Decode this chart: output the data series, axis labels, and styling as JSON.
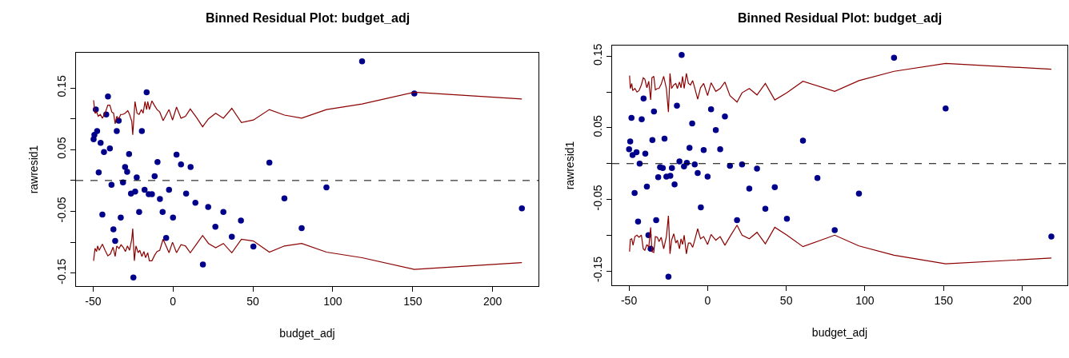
{
  "chart_data": [
    {
      "type": "scatter",
      "title": "Binned Residual Plot: budget_adj",
      "xlabel": "budget_adj",
      "ylabel": "rawresid1",
      "xlim": [
        -60.7,
        228.7
      ],
      "ylim": [
        -0.171,
        0.207
      ],
      "xticks": [
        -50,
        0,
        50,
        100,
        150,
        200
      ],
      "yticks": [
        -0.15,
        {
          "value": -0.1,
          "label": null
        },
        -0.05,
        {
          "value": 0,
          "label": null
        },
        0.05,
        {
          "value": 0.1,
          "label": null
        },
        0.15
      ],
      "ref_lines": [
        {
          "axis": "y",
          "value": 0,
          "color": "#000000",
          "line_style": "dashed"
        }
      ],
      "series": [
        {
          "color": "#00008b",
          "marker": "circle",
          "x": [
            -48.3,
            -49.2,
            -47.5,
            -49.7,
            -45.3,
            -40.7,
            -41.8,
            -34.0,
            -35.2,
            -39.5,
            -43.2,
            -46.5,
            -16.5,
            -19.5,
            -27.5,
            -30.0,
            -28.7,
            -38.5,
            -31.3,
            -22.7,
            -26.3,
            -23.7,
            -17.8,
            -15.2,
            -13.2,
            -11.5,
            -9.7,
            -8.2,
            -2.5,
            2.2,
            5.0,
            11.0,
            8.2,
            14.0,
            -21.2,
            -6.5,
            0.0,
            -44.2,
            -32.7,
            -37.3,
            -36.2,
            -4.3,
            22.0,
            31.5,
            26.5,
            42.5,
            36.8,
            50.3,
            18.7,
            -24.8,
            60.3,
            69.7,
            96.0,
            80.5,
            118.3,
            151.0,
            218.3
          ],
          "values": [
            0.115,
            0.074,
            0.08,
            0.067,
            0.061,
            0.136,
            0.107,
            0.097,
            0.08,
            0.052,
            0.046,
            0.013,
            0.143,
            0.08,
            0.043,
            0.022,
            0.014,
            -0.007,
            -0.003,
            0.005,
            -0.021,
            -0.018,
            -0.015,
            -0.022,
            -0.022,
            0.007,
            0.03,
            -0.03,
            -0.015,
            0.042,
            0.026,
            0.022,
            -0.021,
            -0.036,
            -0.051,
            -0.051,
            -0.06,
            -0.055,
            -0.06,
            -0.079,
            -0.098,
            -0.093,
            -0.043,
            -0.051,
            -0.075,
            -0.065,
            -0.091,
            -0.107,
            -0.136,
            -0.157,
            0.029,
            -0.029,
            -0.011,
            -0.077,
            0.193,
            0.141,
            -0.045
          ]
        },
        {
          "type": "line",
          "color": "#8b0000",
          "marker": "none",
          "line_style": "solid",
          "x": [
            -49.7,
            -48.8,
            -47.8,
            -46.8,
            -45.5,
            -44.2,
            -42.5,
            -40.8,
            -39.5,
            -38.3,
            -37.2,
            -36.2,
            -35.2,
            -33.8,
            -32.8,
            -31.5,
            -30.0,
            -28.3,
            -27.2,
            -25.8,
            -25.2,
            -23.8,
            -22.5,
            -21.2,
            -19.8,
            -18.7,
            -17.5,
            -16.5,
            -15.8,
            -14.8,
            -13.2,
            -11.7,
            -10.0,
            -8.3,
            -6.2,
            -2.5,
            -0.3,
            2.2,
            5.0,
            7.8,
            10.8,
            15.0,
            18.5,
            22.2,
            26.7,
            31.5,
            36.8,
            42.8,
            50.3,
            60.3,
            69.7,
            80.5,
            96.0,
            118.3,
            151.0,
            218.3
          ],
          "values": [
            0.13,
            0.109,
            0.111,
            0.104,
            0.107,
            0.101,
            0.109,
            0.122,
            0.122,
            0.111,
            0.109,
            0.092,
            0.104,
            0.1,
            0.107,
            0.107,
            0.109,
            0.113,
            0.107,
            0.096,
            0.074,
            0.128,
            0.109,
            0.107,
            0.115,
            0.109,
            0.128,
            0.115,
            0.128,
            0.115,
            0.129,
            0.122,
            0.115,
            0.111,
            0.097,
            0.115,
            0.098,
            0.119,
            0.101,
            0.104,
            0.116,
            0.101,
            0.087,
            0.1,
            0.109,
            0.101,
            0.117,
            0.094,
            0.098,
            0.115,
            0.106,
            0.101,
            0.115,
            0.124,
            0.143,
            0.132
          ]
        },
        {
          "type": "line",
          "color": "#8b0000",
          "marker": "none",
          "line_style": "solid",
          "x": [
            -49.7,
            -48.8,
            -47.8,
            -47.2,
            -46.2,
            -44.2,
            -42.5,
            -40.8,
            -39.2,
            -37.5,
            -36.2,
            -35.2,
            -33.8,
            -32.5,
            -31.2,
            -29.8,
            -28.5,
            -27.2,
            -25.8,
            -25.2,
            -24.2,
            -23.2,
            -21.8,
            -20.8,
            -19.5,
            -18.2,
            -17.2,
            -15.8,
            -14.8,
            -13.2,
            -11.5,
            -10.0,
            -8.3,
            -6.2,
            -2.5,
            -0.3,
            2.2,
            5.0,
            7.8,
            10.8,
            15.0,
            18.5,
            22.2,
            26.7,
            31.5,
            36.8,
            42.8,
            50.3,
            60.3,
            69.7,
            80.5,
            96.0,
            118.3,
            151.0,
            218.3
          ],
          "values": [
            -0.13,
            -0.11,
            -0.115,
            -0.106,
            -0.113,
            -0.103,
            -0.113,
            -0.122,
            -0.119,
            -0.108,
            -0.123,
            -0.106,
            -0.11,
            -0.104,
            -0.108,
            -0.115,
            -0.106,
            -0.113,
            -0.095,
            -0.078,
            -0.13,
            -0.106,
            -0.117,
            -0.113,
            -0.123,
            -0.115,
            -0.125,
            -0.117,
            -0.13,
            -0.13,
            -0.121,
            -0.115,
            -0.113,
            -0.095,
            -0.117,
            -0.1,
            -0.117,
            -0.104,
            -0.106,
            -0.117,
            -0.102,
            -0.089,
            -0.102,
            -0.109,
            -0.102,
            -0.117,
            -0.095,
            -0.098,
            -0.116,
            -0.106,
            -0.102,
            -0.116,
            -0.125,
            -0.144,
            -0.133
          ]
        }
      ]
    },
    {
      "type": "scatter",
      "title": "Binned Residual Plot: budget_adj",
      "xlabel": "budget_adj",
      "ylabel": "rawresid1",
      "xlim": [
        -60.7,
        228.7
      ],
      "ylim": [
        -0.17,
        0.165
      ],
      "xticks": [
        -50,
        0,
        50,
        100,
        150,
        200
      ],
      "yticks": [
        -0.15,
        {
          "value": -0.1,
          "label": null
        },
        -0.05,
        {
          "value": 0,
          "label": null
        },
        0.05,
        {
          "value": 0.1,
          "label": null
        },
        0.15
      ],
      "ref_lines": [
        {
          "axis": "y",
          "value": 0,
          "color": "#000000",
          "line_style": "dashed"
        }
      ],
      "series": [
        {
          "color": "#00008b",
          "marker": "circle",
          "x": [
            -16.5,
            -40.7,
            -19.5,
            -48.4,
            -41.9,
            -34.1,
            2.2,
            11.0,
            -9.8,
            5.2,
            -27.4,
            -35.1,
            -49.2,
            -49.9,
            -45.2,
            -47.7,
            -39.6,
            -11.5,
            -2.5,
            8.0,
            -43.2,
            -17.9,
            -13.2,
            -8.2,
            -15.0,
            -30.2,
            -28.5,
            -22.7,
            -23.7,
            -26.2,
            -31.4,
            -21.0,
            -6.3,
            0.0,
            14.2,
            21.9,
            31.4,
            -38.6,
            -46.4,
            26.5,
            42.7,
            -4.3,
            36.7,
            -44.2,
            -32.7,
            18.7,
            50.4,
            -37.6,
            -36.2,
            -24.9,
            60.6,
            69.8,
            96.2,
            80.8,
            118.5,
            151.3,
            218.5
          ],
          "values": [
            0.152,
            0.091,
            0.081,
            0.064,
            0.062,
            0.073,
            0.076,
            0.066,
            0.056,
            0.047,
            0.035,
            0.033,
            0.031,
            0.02,
            0.016,
            0.012,
            0.014,
            0.022,
            0.019,
            0.02,
            0.0,
            0.003,
            0.001,
            -0.001,
            -0.004,
            -0.005,
            -0.006,
            -0.006,
            -0.017,
            -0.018,
            -0.019,
            -0.029,
            -0.013,
            -0.018,
            -0.003,
            -0.001,
            -0.007,
            -0.032,
            -0.041,
            -0.035,
            -0.033,
            -0.061,
            -0.063,
            -0.081,
            -0.079,
            -0.079,
            -0.077,
            -0.1,
            -0.119,
            -0.158,
            0.032,
            -0.02,
            -0.042,
            -0.093,
            0.148,
            0.077,
            -0.102
          ]
        },
        {
          "type": "line",
          "color": "#8b0000",
          "marker": "none",
          "line_style": "solid",
          "x": [
            -49.6,
            -49.1,
            -48.2,
            -47.6,
            -46.2,
            -44.9,
            -43.6,
            -42.1,
            -40.9,
            -39.9,
            -38.6,
            -37.4,
            -36.2,
            -35.4,
            -34.2,
            -33.2,
            -31.9,
            -30.9,
            -29.5,
            -27.9,
            -26.2,
            -24.9,
            -23.9,
            -22.9,
            -21.5,
            -20.2,
            -19.2,
            -17.9,
            -16.9,
            -15.9,
            -14.9,
            -13.5,
            -12.2,
            -10.9,
            -9.5,
            -8.2,
            -6.3,
            -4.5,
            -2.5,
            0.0,
            2.2,
            5.2,
            8.0,
            11.0,
            14.2,
            18.7,
            21.9,
            26.5,
            31.4,
            36.7,
            42.7,
            50.4,
            60.6,
            80.8,
            96.2,
            118.5,
            151.3,
            218.5
          ],
          "values": [
            0.123,
            0.105,
            0.112,
            0.102,
            0.105,
            0.1,
            0.102,
            0.11,
            0.12,
            0.118,
            0.106,
            0.115,
            0.089,
            0.12,
            0.122,
            0.103,
            0.105,
            0.105,
            0.111,
            0.122,
            0.105,
            0.072,
            0.126,
            0.105,
            0.11,
            0.112,
            0.105,
            0.114,
            0.106,
            0.122,
            0.105,
            0.126,
            0.112,
            0.11,
            0.116,
            0.106,
            0.09,
            0.106,
            0.112,
            0.095,
            0.113,
            0.101,
            0.105,
            0.114,
            0.095,
            0.086,
            0.099,
            0.105,
            0.096,
            0.112,
            0.089,
            0.099,
            0.115,
            0.101,
            0.116,
            0.129,
            0.14,
            0.132
          ]
        },
        {
          "type": "line",
          "color": "#8b0000",
          "marker": "none",
          "line_style": "solid",
          "x": [
            -49.6,
            -49.1,
            -48.2,
            -47.4,
            -46.2,
            -44.9,
            -43.6,
            -42.1,
            -40.9,
            -39.9,
            -38.6,
            -37.4,
            -36.2,
            -35.4,
            -34.2,
            -33.2,
            -31.9,
            -30.9,
            -29.5,
            -27.9,
            -26.2,
            -24.9,
            -23.9,
            -22.9,
            -21.5,
            -20.2,
            -19.2,
            -17.9,
            -16.9,
            -15.9,
            -14.9,
            -13.5,
            -12.2,
            -10.9,
            -9.5,
            -8.2,
            -6.3,
            -4.5,
            -2.5,
            0.0,
            2.2,
            5.2,
            8.0,
            11.0,
            14.2,
            18.7,
            21.9,
            26.5,
            31.4,
            36.7,
            42.7,
            50.4,
            60.6,
            80.8,
            96.2,
            118.5,
            151.3,
            218.5
          ],
          "values": [
            -0.123,
            -0.106,
            -0.105,
            -0.114,
            -0.102,
            -0.1,
            -0.103,
            -0.1,
            -0.119,
            -0.121,
            -0.113,
            -0.117,
            -0.089,
            -0.123,
            -0.124,
            -0.102,
            -0.103,
            -0.109,
            -0.103,
            -0.119,
            -0.102,
            -0.073,
            -0.126,
            -0.107,
            -0.098,
            -0.111,
            -0.107,
            -0.119,
            -0.105,
            -0.113,
            -0.1,
            -0.126,
            -0.111,
            -0.111,
            -0.117,
            -0.107,
            -0.091,
            -0.105,
            -0.102,
            -0.113,
            -0.099,
            -0.107,
            -0.102,
            -0.114,
            -0.102,
            -0.086,
            -0.1,
            -0.105,
            -0.096,
            -0.112,
            -0.089,
            -0.1,
            -0.116,
            -0.1,
            -0.115,
            -0.128,
            -0.14,
            -0.132
          ]
        }
      ]
    }
  ]
}
